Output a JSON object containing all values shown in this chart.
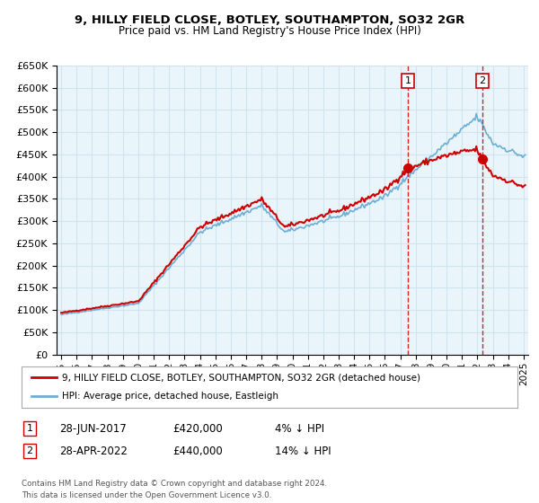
{
  "title": "9, HILLY FIELD CLOSE, BOTLEY, SOUTHAMPTON, SO32 2GR",
  "subtitle": "Price paid vs. HM Land Registry's House Price Index (HPI)",
  "legend_line1": "9, HILLY FIELD CLOSE, BOTLEY, SOUTHAMPTON, SO32 2GR (detached house)",
  "legend_line2": "HPI: Average price, detached house, Eastleigh",
  "annotation1_label": "1",
  "annotation1_date": "28-JUN-2017",
  "annotation1_price": "£420,000",
  "annotation1_hpi": "4% ↓ HPI",
  "annotation2_label": "2",
  "annotation2_date": "28-APR-2022",
  "annotation2_price": "£440,000",
  "annotation2_hpi": "14% ↓ HPI",
  "footer1": "Contains HM Land Registry data © Crown copyright and database right 2024.",
  "footer2": "This data is licensed under the Open Government Licence v3.0.",
  "hpi_color": "#6baed6",
  "price_color": "#cc0000",
  "marker_color": "#cc0000",
  "vline_color": "#cc0000",
  "grid_color": "#d0e4f0",
  "bg_color": "#eaf4fb",
  "ylim": [
    0,
    650000
  ],
  "yticks": [
    0,
    50000,
    100000,
    150000,
    200000,
    250000,
    300000,
    350000,
    400000,
    450000,
    500000,
    550000,
    600000,
    650000
  ],
  "start_year": 1995,
  "end_year": 2025,
  "sale1_year": 2017.49,
  "sale1_value": 420000,
  "sale2_year": 2022.32,
  "sale2_value": 440000
}
